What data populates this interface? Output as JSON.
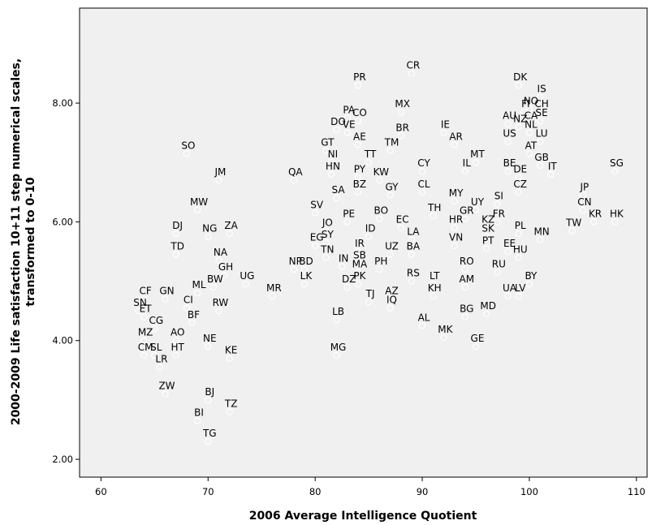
{
  "chart_data": {
    "type": "scatter",
    "title": "",
    "xlabel": "2006 Average Intelligence Quotient",
    "ylabel_lines": [
      "2000-2009 Life satisfaction 10+11 step numerical scales,",
      "transformed to 0-10"
    ],
    "xlim": [
      58,
      111
    ],
    "ylim": [
      1.7,
      9.6
    ],
    "xticks": [
      60,
      70,
      80,
      90,
      100,
      110
    ],
    "xtick_labels": [
      "60",
      "70",
      "80",
      "90",
      "100",
      "110"
    ],
    "yticks": [
      2,
      4,
      6,
      8
    ],
    "ytick_labels": [
      "2.00",
      "4.00",
      "6.00",
      "8.00"
    ],
    "grid": false,
    "legend": "none",
    "colors": {
      "plot_bg": "#f0f0f0",
      "marker": "#ffffff",
      "text": "#000000"
    },
    "points": [
      {
        "label": "SN",
        "x": 63.5,
        "y": 4.5
      },
      {
        "label": "ET",
        "x": 64,
        "y": 4.4
      },
      {
        "label": "CF",
        "x": 64,
        "y": 4.7
      },
      {
        "label": "GN",
        "x": 66,
        "y": 4.7
      },
      {
        "label": "ML",
        "x": 69,
        "y": 4.8
      },
      {
        "label": "CI",
        "x": 68,
        "y": 4.55
      },
      {
        "label": "CG",
        "x": 65,
        "y": 4.2
      },
      {
        "label": "AO",
        "x": 67,
        "y": 4.0
      },
      {
        "label": "BF",
        "x": 68.5,
        "y": 4.3
      },
      {
        "label": "RW",
        "x": 71,
        "y": 4.5
      },
      {
        "label": "MZ",
        "x": 64,
        "y": 4.0
      },
      {
        "label": "NE",
        "x": 70,
        "y": 3.9
      },
      {
        "label": "KE",
        "x": 72,
        "y": 3.7
      },
      {
        "label": "CM",
        "x": 64,
        "y": 3.75
      },
      {
        "label": "SL",
        "x": 65,
        "y": 3.75
      },
      {
        "label": "HT",
        "x": 67,
        "y": 3.75
      },
      {
        "label": "LR",
        "x": 65.5,
        "y": 3.55
      },
      {
        "label": "ZW",
        "x": 66,
        "y": 3.1
      },
      {
        "label": "BJ",
        "x": 70,
        "y": 3.0
      },
      {
        "label": "TZ",
        "x": 72,
        "y": 2.8
      },
      {
        "label": "BI",
        "x": 69,
        "y": 2.65
      },
      {
        "label": "TG",
        "x": 70,
        "y": 2.3
      },
      {
        "label": "SO",
        "x": 68,
        "y": 7.15
      },
      {
        "label": "JM",
        "x": 71,
        "y": 6.7
      },
      {
        "label": "MW",
        "x": 69,
        "y": 6.2
      },
      {
        "label": "ZA",
        "x": 72,
        "y": 5.8
      },
      {
        "label": "DJ",
        "x": 67,
        "y": 5.8
      },
      {
        "label": "NG",
        "x": 70,
        "y": 5.75
      },
      {
        "label": "TD",
        "x": 67,
        "y": 5.45
      },
      {
        "label": "NA",
        "x": 71,
        "y": 5.35
      },
      {
        "label": "GH",
        "x": 71.5,
        "y": 5.1
      },
      {
        "label": "BW",
        "x": 70.5,
        "y": 4.9
      },
      {
        "label": "UG",
        "x": 73.5,
        "y": 4.95
      },
      {
        "label": "MR",
        "x": 76,
        "y": 4.75
      },
      {
        "label": "PR",
        "x": 84,
        "y": 8.3
      },
      {
        "label": "CR",
        "x": 89,
        "y": 8.5
      },
      {
        "label": "PA",
        "x": 83,
        "y": 7.75
      },
      {
        "label": "CO",
        "x": 84,
        "y": 7.7
      },
      {
        "label": "DO",
        "x": 82,
        "y": 7.55
      },
      {
        "label": "VE",
        "x": 83,
        "y": 7.5
      },
      {
        "label": "MX",
        "x": 88,
        "y": 7.85
      },
      {
        "label": "BR",
        "x": 88,
        "y": 7.45
      },
      {
        "label": "AE",
        "x": 84,
        "y": 7.3
      },
      {
        "label": "TM",
        "x": 87,
        "y": 7.2
      },
      {
        "label": "GT",
        "x": 81,
        "y": 7.2
      },
      {
        "label": "NI",
        "x": 81.5,
        "y": 7.0
      },
      {
        "label": "TT",
        "x": 85,
        "y": 7.0
      },
      {
        "label": "HN",
        "x": 81.5,
        "y": 6.8
      },
      {
        "label": "PY",
        "x": 84,
        "y": 6.75
      },
      {
        "label": "CY",
        "x": 90,
        "y": 6.85
      },
      {
        "label": "QA",
        "x": 78,
        "y": 6.7
      },
      {
        "label": "KW",
        "x": 86,
        "y": 6.7
      },
      {
        "label": "BZ",
        "x": 84,
        "y": 6.5
      },
      {
        "label": "GY",
        "x": 87,
        "y": 6.45
      },
      {
        "label": "CL",
        "x": 90,
        "y": 6.5
      },
      {
        "label": "SA",
        "x": 82,
        "y": 6.4
      },
      {
        "label": "PE",
        "x": 83,
        "y": 6.0
      },
      {
        "label": "BO",
        "x": 86,
        "y": 6.05
      },
      {
        "label": "SV",
        "x": 80,
        "y": 6.15
      },
      {
        "label": "TH",
        "x": 91,
        "y": 6.1
      },
      {
        "label": "EC",
        "x": 88,
        "y": 5.9
      },
      {
        "label": "ID",
        "x": 85,
        "y": 5.75
      },
      {
        "label": "JO",
        "x": 81,
        "y": 5.85
      },
      {
        "label": "LA",
        "x": 89,
        "y": 5.7
      },
      {
        "label": "HR",
        "x": 93,
        "y": 5.9
      },
      {
        "label": "SY",
        "x": 81,
        "y": 5.65
      },
      {
        "label": "EG",
        "x": 80,
        "y": 5.6
      },
      {
        "label": "IR",
        "x": 84,
        "y": 5.5
      },
      {
        "label": "UZ",
        "x": 87,
        "y": 5.45
      },
      {
        "label": "BA",
        "x": 89,
        "y": 5.45
      },
      {
        "label": "TN",
        "x": 81,
        "y": 5.4
      },
      {
        "label": "SB",
        "x": 84,
        "y": 5.3
      },
      {
        "label": "IN",
        "x": 82.5,
        "y": 5.25
      },
      {
        "label": "NP",
        "x": 78,
        "y": 5.2
      },
      {
        "label": "BD",
        "x": 79,
        "y": 5.2
      },
      {
        "label": "MA",
        "x": 84,
        "y": 5.15
      },
      {
        "label": "PH",
        "x": 86,
        "y": 5.2
      },
      {
        "label": "RO",
        "x": 94,
        "y": 5.2
      },
      {
        "label": "RU",
        "x": 97,
        "y": 5.15
      },
      {
        "label": "LK",
        "x": 79,
        "y": 4.95
      },
      {
        "label": "DZ",
        "x": 83,
        "y": 4.9
      },
      {
        "label": "PK",
        "x": 84,
        "y": 4.95
      },
      {
        "label": "RS",
        "x": 89,
        "y": 5.0
      },
      {
        "label": "LT",
        "x": 91,
        "y": 4.95
      },
      {
        "label": "AM",
        "x": 94,
        "y": 4.9
      },
      {
        "label": "KH",
        "x": 91,
        "y": 4.75
      },
      {
        "label": "AZ",
        "x": 87,
        "y": 4.7
      },
      {
        "label": "TJ",
        "x": 85,
        "y": 4.65
      },
      {
        "label": "IQ",
        "x": 87,
        "y": 4.55
      },
      {
        "label": "LB",
        "x": 82,
        "y": 4.35
      },
      {
        "label": "AL",
        "x": 90,
        "y": 4.25
      },
      {
        "label": "MK",
        "x": 92,
        "y": 4.05
      },
      {
        "label": "BG",
        "x": 94,
        "y": 4.4
      },
      {
        "label": "GE",
        "x": 95,
        "y": 3.9
      },
      {
        "label": "MG",
        "x": 82,
        "y": 3.75
      },
      {
        "label": "VN",
        "x": 93,
        "y": 5.6
      },
      {
        "label": "PT",
        "x": 96,
        "y": 5.55
      },
      {
        "label": "GR",
        "x": 94,
        "y": 6.05
      },
      {
        "label": "KZ",
        "x": 96,
        "y": 5.9
      },
      {
        "label": "MY",
        "x": 93,
        "y": 6.35
      },
      {
        "label": "UY",
        "x": 95,
        "y": 6.2
      },
      {
        "label": "FR",
        "x": 97,
        "y": 6.0
      },
      {
        "label": "SI",
        "x": 97,
        "y": 6.3
      },
      {
        "label": "SK",
        "x": 96,
        "y": 5.75
      },
      {
        "label": "PL",
        "x": 99,
        "y": 5.8
      },
      {
        "label": "EE",
        "x": 98,
        "y": 5.5
      },
      {
        "label": "HU",
        "x": 99,
        "y": 5.4
      },
      {
        "label": "BY",
        "x": 100,
        "y": 4.95
      },
      {
        "label": "UA",
        "x": 98,
        "y": 4.75
      },
      {
        "label": "LV",
        "x": 99,
        "y": 4.75
      },
      {
        "label": "MD",
        "x": 96,
        "y": 4.45
      },
      {
        "label": "IE",
        "x": 92,
        "y": 7.5
      },
      {
        "label": "AR",
        "x": 93,
        "y": 7.3
      },
      {
        "label": "AU",
        "x": 98,
        "y": 7.65
      },
      {
        "label": "US",
        "x": 98,
        "y": 7.35
      },
      {
        "label": "MT",
        "x": 95,
        "y": 7.0
      },
      {
        "label": "IL",
        "x": 94,
        "y": 6.85
      },
      {
        "label": "BE",
        "x": 98,
        "y": 6.85
      },
      {
        "label": "DK",
        "x": 99,
        "y": 8.3
      },
      {
        "label": "FI",
        "x": 99.5,
        "y": 7.85
      },
      {
        "label": "IS",
        "x": 101,
        "y": 8.1
      },
      {
        "label": "CH",
        "x": 101,
        "y": 7.85
      },
      {
        "label": "CA",
        "x": 100,
        "y": 7.65
      },
      {
        "label": "LU",
        "x": 101,
        "y": 7.35
      },
      {
        "label": "AT",
        "x": 100,
        "y": 7.15
      },
      {
        "label": "GB",
        "x": 101,
        "y": 6.95
      },
      {
        "label": "DE",
        "x": 99,
        "y": 6.75
      },
      {
        "label": "IT",
        "x": 102,
        "y": 6.8
      },
      {
        "label": "CZ",
        "x": 99,
        "y": 6.5
      },
      {
        "label": "NL",
        "x": 100,
        "y": 7.5
      },
      {
        "label": "NO",
        "x": 100,
        "y": 7.9
      },
      {
        "label": "SE",
        "x": 101,
        "y": 7.7
      },
      {
        "label": "NZ",
        "x": 99,
        "y": 7.6
      },
      {
        "label": "SG",
        "x": 108,
        "y": 6.85
      },
      {
        "label": "JP",
        "x": 105,
        "y": 6.45
      },
      {
        "label": "CN",
        "x": 105,
        "y": 6.2
      },
      {
        "label": "KR",
        "x": 106,
        "y": 6.0
      },
      {
        "label": "HK",
        "x": 108,
        "y": 6.0
      },
      {
        "label": "TW",
        "x": 104,
        "y": 5.85
      },
      {
        "label": "MN",
        "x": 101,
        "y": 5.7
      }
    ]
  }
}
